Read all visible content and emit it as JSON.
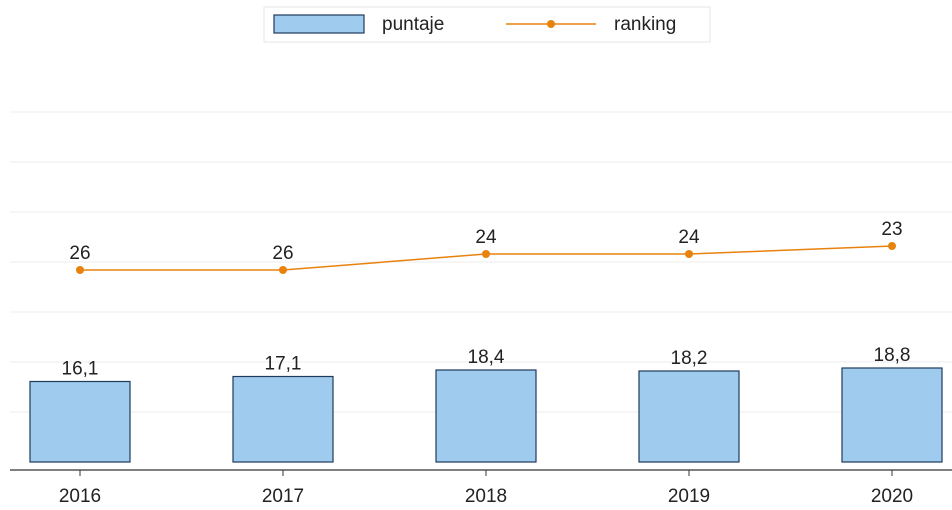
{
  "chart_data": {
    "type": "bar_line",
    "categories": [
      "2016",
      "2017",
      "2018",
      "2019",
      "2020"
    ],
    "series": [
      {
        "name": "puntaje",
        "type": "bar",
        "color": "#9ecbee",
        "values": [
          16.1,
          17.1,
          18.4,
          18.2,
          18.8
        ],
        "value_labels": [
          "16,1",
          "17,1",
          "18,4",
          "18,2",
          "18,8"
        ]
      },
      {
        "name": "ranking",
        "type": "line",
        "axis": "y2",
        "color": "#e8820c",
        "values": [
          26,
          26,
          24,
          24,
          23
        ]
      }
    ],
    "ylim": [
      0,
      80
    ],
    "yticks": [
      10,
      20,
      30,
      40,
      50,
      60,
      70
    ],
    "y2lim": [
      50,
      0
    ],
    "grid": true,
    "legend": "top"
  }
}
